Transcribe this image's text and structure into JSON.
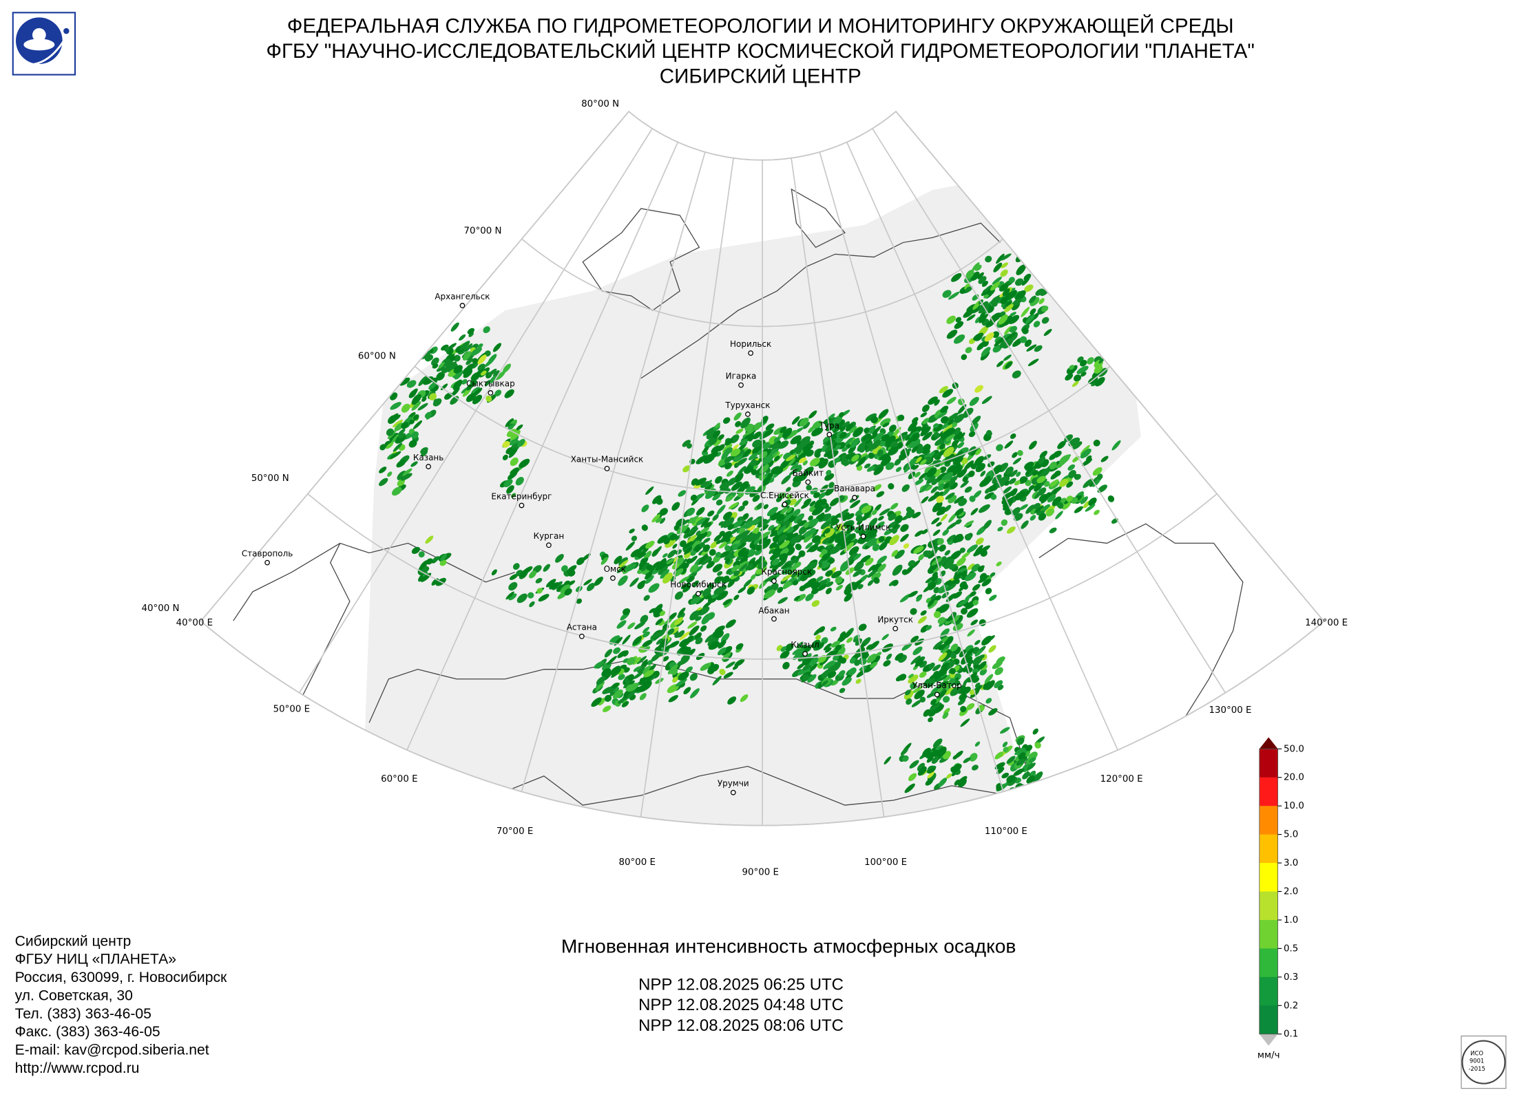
{
  "header": {
    "lines": [
      "ФЕДЕРАЛЬНАЯ СЛУЖБА ПО ГИДРОМЕТЕОРОЛОГИИ И МОНИТОРИНГУ ОКРУЖАЮЩЕЙ СРЕДЫ",
      "ФГБУ \"НАУЧНО-ИССЛЕДОВАТЕЛЬСКИЙ ЦЕНТР КОСМИЧЕСКОЙ ГИДРОМЕТЕОРОЛОГИИ \"ПЛАНЕТА\"",
      "СИБИРСКИЙ ЦЕНТР"
    ]
  },
  "map": {
    "parallel_labels": [
      "80°00 N",
      "70°00 N",
      "60°00 N",
      "50°00 N",
      "40°00 N"
    ],
    "meridian_labels": [
      "40°00 E",
      "50°00 E",
      "60°00 E",
      "70°00 E",
      "80°00 E",
      "90°00 E",
      "100°00 E",
      "110°00 E",
      "120°00 E",
      "130°00 E",
      "140°00 E"
    ],
    "cities": [
      "Архангельск",
      "Сыктывкар",
      "Казань",
      "Екатеринбург",
      "Курган",
      "Ставрополь",
      "Ханты-Мансийск",
      "Омск",
      "Астана",
      "Новосибирск",
      "Норильск",
      "Игарка",
      "Туруханск",
      "Тура",
      "Байкит",
      "Ванавара",
      "С.Енисейск",
      "Усть-Илимск",
      "Красноярск",
      "Абакан",
      "Иркутск",
      "Кызыл",
      "Улан-Батор",
      "Урумчи"
    ]
  },
  "legend": {
    "labels": [
      "50.0",
      "20.0",
      "10.0",
      "5.0",
      "3.0",
      "2.0",
      "1.0",
      "0.5",
      "0.3",
      "0.2",
      "0.1"
    ],
    "unit": "мм/ч"
  },
  "product": {
    "title": "Мгновенная интенсивность атмосферных осадков",
    "passes": [
      "NPP 12.08.2025  06:25 UTC",
      "NPP 12.08.2025  04:48 UTC",
      "NPP 12.08.2025  08:06 UTC"
    ]
  },
  "contact": {
    "lines": [
      "Сибирский центр",
      "ФГБУ НИЦ «ПЛАНЕТА»",
      "Россия, 630099, г. Новосибирск",
      "ул. Советская, 30",
      "Тел. (383) 363-46-05",
      "Факс. (383) 363-46-05",
      "E-mail: kav@rcpod.siberia.net",
      "http://www.rcpod.ru"
    ]
  },
  "iso": {
    "lines": [
      "ИСО",
      "9001",
      "-2015"
    ]
  }
}
